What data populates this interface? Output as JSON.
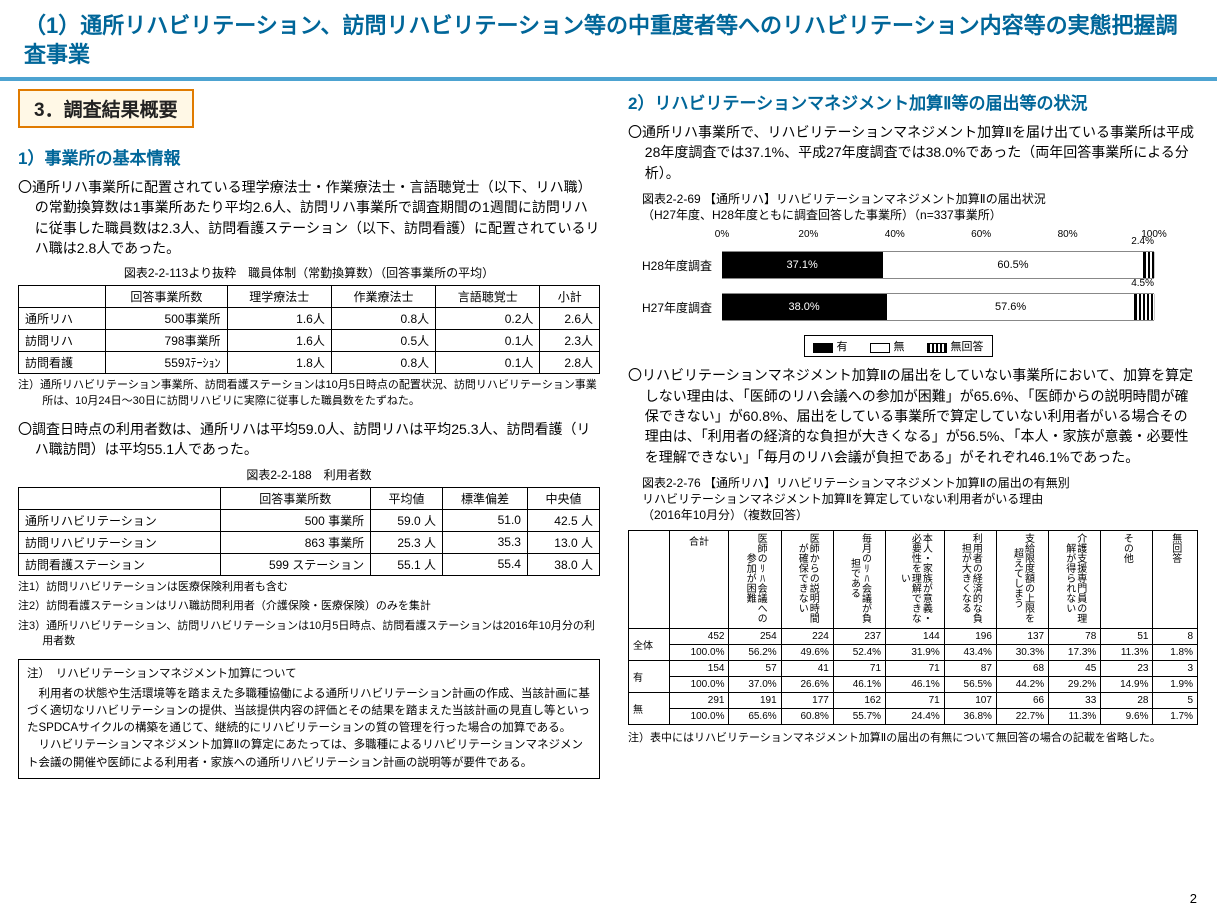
{
  "page_title": "（1）通所リハビリテーション、訪問リハビリテーション等の中重度者等へのリハビリテーション内容等の実態把握調査事業",
  "section3": "3．調査結果概要",
  "left": {
    "h1": "1）事業所の基本情報",
    "para1": "〇通所リハ事業所に配置されている理学療法士・作業療法士・言語聴覚士（以下、リハ職）の常勤換算数は1事業所あたり平均2.6人、訪問リハ事業所で調査期間の1週間に訪問リハに従事した職員数は2.3人、訪問看護ステーション（以下、訪問看護）に配置されているリハ職は2.8人であった。",
    "t1_caption": "図表2-2-113より抜粋　職員体制（常勤換算数）（回答事業所の平均）",
    "t1": {
      "cols": [
        "",
        "回答事業所数",
        "理学療法士",
        "作業療法士",
        "言語聴覚士",
        "小計"
      ],
      "rows": [
        [
          "通所リハ",
          "500事業所",
          "1.6人",
          "0.8人",
          "0.2人",
          "2.6人"
        ],
        [
          "訪問リハ",
          "798事業所",
          "1.6人",
          "0.5人",
          "0.1人",
          "2.3人"
        ],
        [
          "訪問看護",
          "559ｽﾃｰｼｮﾝ",
          "1.8人",
          "0.8人",
          "0.1人",
          "2.8人"
        ]
      ]
    },
    "t1_note": "注）通所リハビリテーション事業所、訪問看護ステーションは10月5日時点の配置状況、訪問リハビリテーション事業所は、10月24日～30日に訪問リハビリに実際に従事した職員数をたずねた。",
    "para2": "〇調査日時点の利用者数は、通所リハは平均59.0人、訪問リハは平均25.3人、訪問看護（リハ職訪問）は平均55.1人であった。",
    "t2_caption": "図表2-2-188　利用者数",
    "t2": {
      "cols": [
        "",
        "回答事業所数",
        "平均値",
        "標準偏差",
        "中央値"
      ],
      "rows": [
        [
          "通所リハビリテーション",
          "500 事業所",
          "59.0 人",
          "51.0",
          "42.5 人"
        ],
        [
          "訪問リハビリテーション",
          "863 事業所",
          "25.3 人",
          "35.3",
          "13.0 人"
        ],
        [
          "訪問看護ステーション",
          "599 ステーション",
          "55.1 人",
          "55.4",
          "38.0 人"
        ]
      ]
    },
    "t2_notes": [
      "注1）訪問リハビリテーションは医療保険利用者も含む",
      "注2）訪問看護ステーションはリハ職訪問利用者（介護保険・医療保険）のみを集計",
      "注3）通所リハビリテーション、訪問リハビリテーションは10月5日時点、訪問看護ステーションは2016年10月分の利用者数"
    ],
    "box": {
      "title": "注）　リハビリテーションマネジメント加算について",
      "body1": "利用者の状態や生活環境等を踏まえた多職種協働による通所リハビリテーション計画の作成、当該計画に基づく適切なリハビリテーションの提供、当該提供内容の評価とその結果を踏まえた当該計画の見直し等といったSPDCAサイクルの構築を通じて、継続的にリハビリテーションの質の管理を行った場合の加算である。",
      "body2": "リハビリテーションマネジメント加算Ⅱの算定にあたっては、多職種によるリハビリテーションマネジメント会議の開催や医師による利用者・家族への通所リハビリテーション計画の説明等が要件である。"
    }
  },
  "right": {
    "h2": "2）リハビリテーションマネジメント加算Ⅱ等の届出等の状況",
    "para1": "〇通所リハ事業所で、リハビリテーションマネジメント加算Ⅱを届け出ている事業所は平成28年度調査では37.1%、平成27年度調査では38.0%であった（両年回答事業所による分析）。",
    "chart_caption": "図表2-2-69 【通所リハ】リハビリテーションマネジメント加算Ⅱの届出状況\n（H27年度、H28年度ともに調査回答した事業所）（n=337事業所）",
    "chart": {
      "ticks": [
        "0%",
        "20%",
        "40%",
        "60%",
        "80%",
        "100%"
      ],
      "rows": [
        {
          "label": "H28年度調査",
          "yes": 37.1,
          "no": 60.5,
          "na": 2.4,
          "na_label": "2.4%"
        },
        {
          "label": "H27年度調査",
          "yes": 38.0,
          "no": 57.6,
          "na": 4.5,
          "na_label": "4.5%"
        }
      ],
      "legend": [
        "有",
        "無",
        "無回答"
      ]
    },
    "para2": "〇リハビリテーションマネジメント加算Ⅱの届出をしていない事業所において、加算を算定しない理由は、「医師のリハ会議への参加が困難」が65.6%、「医師からの説明時間が確保できない」が60.8%、届出をしている事業所で算定していない利用者がいる場合その理由は、「利用者の経済的な負担が大きくなる」が56.5%、「本人・家族が意義・必要性を理解できない」「毎月のリハ会議が負担である」がそれぞれ46.1%であった。",
    "cross_caption": "図表2-2-76 【通所リハ】リハビリテーションマネジメント加算Ⅱの届出の有無別\nリハビリテーションマネジメント加算Ⅱを算定していない利用者がいる理由\n（2016年10月分）（複数回答）",
    "cross": {
      "cols": [
        "",
        "合計",
        "医師のﾘﾊ会議への参加が困難",
        "医師からの説明時間が確保できない",
        "毎月のﾘﾊ会議が負担である",
        "本人・家族が意義・必要性を理解できない",
        "利用者の経済的な負担が大きくなる",
        "支給限度額の上限を超えてしまう",
        "介護支援専門員の理解が得られない",
        "その他",
        "無回答"
      ],
      "rows": [
        {
          "h": "全体",
          "n": [
            "452",
            "254",
            "224",
            "237",
            "144",
            "196",
            "137",
            "78",
            "51",
            "8"
          ],
          "p": [
            "100.0%",
            "56.2%",
            "49.6%",
            "52.4%",
            "31.9%",
            "43.4%",
            "30.3%",
            "17.3%",
            "11.3%",
            "1.8%"
          ]
        },
        {
          "h": "有",
          "n": [
            "154",
            "57",
            "41",
            "71",
            "71",
            "87",
            "68",
            "45",
            "23",
            "3"
          ],
          "p": [
            "100.0%",
            "37.0%",
            "26.6%",
            "46.1%",
            "46.1%",
            "56.5%",
            "44.2%",
            "29.2%",
            "14.9%",
            "1.9%"
          ]
        },
        {
          "h": "無",
          "n": [
            "291",
            "191",
            "177",
            "162",
            "71",
            "107",
            "66",
            "33",
            "28",
            "5"
          ],
          "p": [
            "100.0%",
            "65.6%",
            "60.8%",
            "55.7%",
            "24.4%",
            "36.8%",
            "22.7%",
            "11.3%",
            "9.6%",
            "1.7%"
          ]
        }
      ]
    },
    "cross_note": "注）表中にはリハビリテーションマネジメント加算Ⅱの届出の有無について無回答の場合の記載を省略した。"
  },
  "page_num": "2"
}
